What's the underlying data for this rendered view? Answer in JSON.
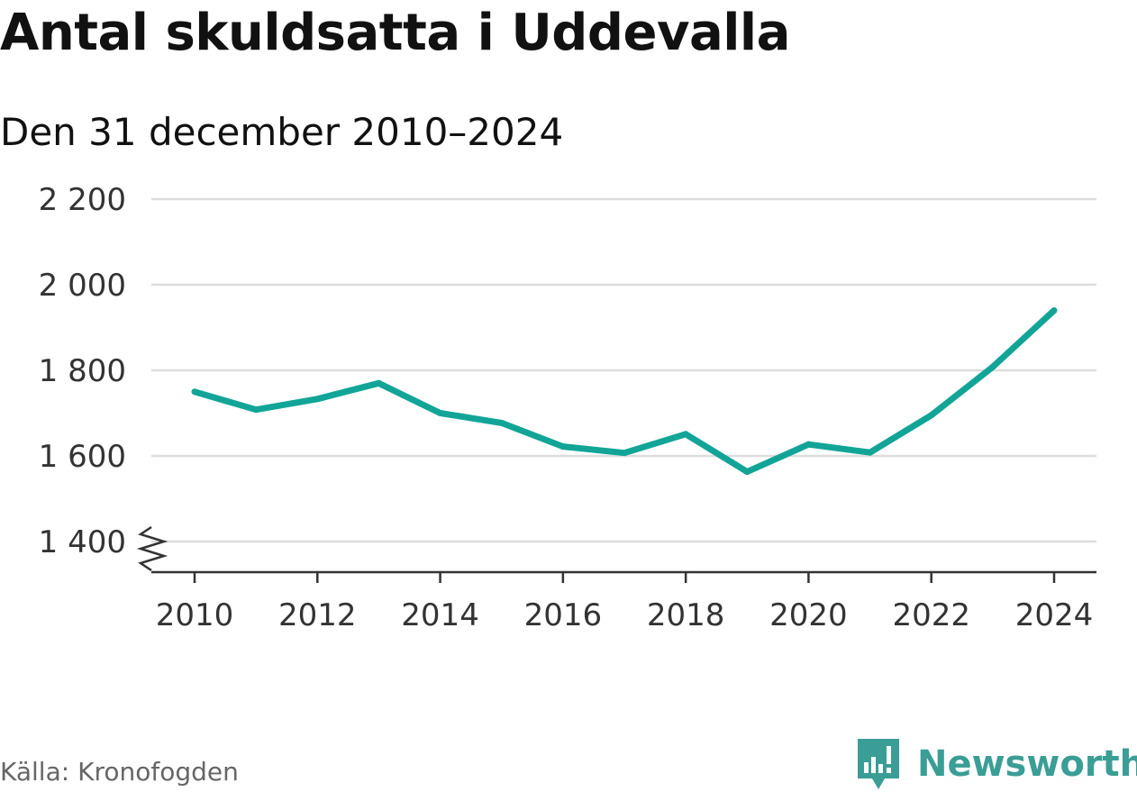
{
  "title": "Antal skuldsatta i Uddevalla",
  "subtitle": "Den 31 december 2010–2024",
  "source": "Källa: Kronofogden",
  "brand": "Newsworthy",
  "colors": {
    "line": "#12a597",
    "grid": "#dddddd",
    "axis": "#333333",
    "brand": "#3a9e96"
  },
  "chart_data": {
    "type": "line",
    "title": "Antal skuldsatta i Uddevalla",
    "subtitle": "Den 31 december 2010–2024",
    "xlabel": "",
    "ylabel": "",
    "x": [
      2010,
      2011,
      2012,
      2013,
      2014,
      2015,
      2016,
      2017,
      2018,
      2019,
      2020,
      2021,
      2022,
      2023,
      2024
    ],
    "series": [
      {
        "name": "Antal skuldsatta",
        "values": [
          1750,
          1708,
          1733,
          1770,
          1700,
          1677,
          1622,
          1607,
          1651,
          1563,
          1627,
          1608,
          1695,
          1808,
          1940
        ]
      }
    ],
    "ylim": [
      1400,
      2200
    ],
    "yticks": [
      2200,
      2000,
      1800,
      1600,
      1400
    ],
    "ytick_labels": [
      "2 200",
      "2 000",
      "1 800",
      "1 600",
      "1 400"
    ],
    "xticks": [
      2010,
      2012,
      2014,
      2016,
      2018,
      2020,
      2022,
      2024
    ],
    "xtick_labels": [
      "2010",
      "2012",
      "2014",
      "2016",
      "2018",
      "2020",
      "2022",
      "2024"
    ],
    "axis_break": true,
    "grid": true
  }
}
